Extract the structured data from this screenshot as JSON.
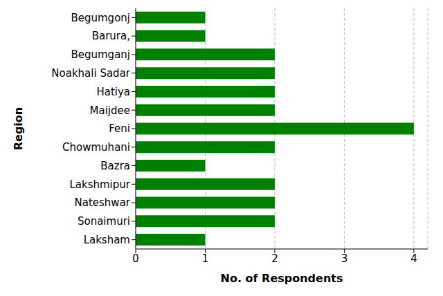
{
  "chart_data": {
    "type": "bar",
    "orientation": "horizontal",
    "categories": [
      "Begumgonj",
      "Barura,",
      "Begumganj",
      "Noakhali Sadar",
      "Hatiya",
      "Maijdee",
      "Feni",
      "Chowmuhani",
      "Bazra",
      "Lakshmipur",
      "Nateshwar",
      "Sonaimuri",
      "Laksham"
    ],
    "values": [
      1,
      1,
      2,
      2,
      2,
      2,
      4,
      2,
      1,
      2,
      2,
      2,
      1
    ],
    "color": "#008000",
    "x_label": "No. of Respondents",
    "y_label": "Region",
    "xlim": [
      0,
      4.2
    ],
    "xticks": [
      0,
      1,
      2,
      3,
      4
    ],
    "grid": true
  }
}
